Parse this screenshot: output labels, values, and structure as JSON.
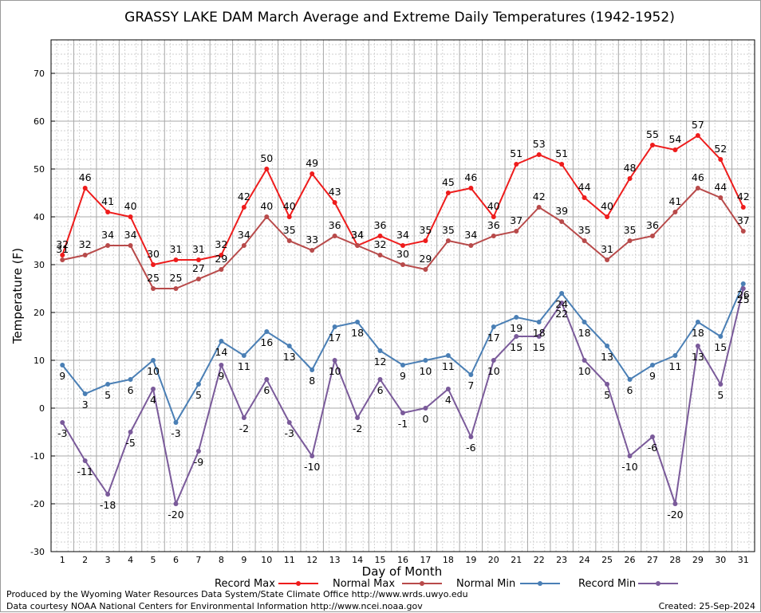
{
  "chart_data": {
    "type": "line",
    "title": "GRASSY LAKE DAM March Average and Extreme Daily Temperatures (1942-1952)",
    "xlabel": "Day of Month",
    "ylabel": "Temperature (F)",
    "x": [
      1,
      2,
      3,
      4,
      5,
      6,
      7,
      8,
      9,
      10,
      11,
      12,
      13,
      14,
      15,
      16,
      17,
      18,
      19,
      20,
      21,
      22,
      23,
      24,
      25,
      26,
      27,
      28,
      29,
      30,
      31
    ],
    "ylim": [
      -30,
      77
    ],
    "yticks": [
      -30,
      -20,
      -10,
      0,
      10,
      20,
      30,
      40,
      50,
      60,
      70
    ],
    "grid": true,
    "series": [
      {
        "name": "Record Max",
        "color": "#ee1c1c",
        "values": [
          32,
          46,
          41,
          40,
          30,
          31,
          31,
          32,
          42,
          50,
          40,
          49,
          43,
          34,
          36,
          34,
          35,
          45,
          46,
          40,
          51,
          53,
          51,
          44,
          40,
          48,
          55,
          54,
          57,
          52,
          42
        ]
      },
      {
        "name": "Normal Max",
        "color": "#b84a4a",
        "values": [
          31,
          32,
          34,
          34,
          25,
          25,
          27,
          29,
          34,
          40,
          35,
          33,
          36,
          34,
          32,
          30,
          29,
          35,
          34,
          36,
          37,
          42,
          39,
          35,
          31,
          35,
          36,
          41,
          46,
          44,
          37
        ]
      },
      {
        "name": "Normal Min",
        "color": "#4a7fb5",
        "values": [
          9,
          3,
          5,
          6,
          10,
          -3,
          5,
          14,
          11,
          16,
          13,
          8,
          17,
          18,
          12,
          9,
          10,
          11,
          7,
          17,
          19,
          18,
          24,
          18,
          13,
          6,
          9,
          11,
          18,
          15,
          26
        ]
      },
      {
        "name": "Record Min",
        "color": "#7a5a9a",
        "values": [
          -3,
          -11,
          -18,
          -5,
          4,
          -20,
          -9,
          9,
          -2,
          6,
          -3,
          -10,
          10,
          -2,
          6,
          -1,
          0,
          4,
          -6,
          10,
          15,
          15,
          22,
          10,
          5,
          -10,
          -6,
          -20,
          13,
          5,
          25
        ]
      }
    ],
    "legend_position": "bottom"
  },
  "legend": {
    "record_max": "Record Max",
    "normal_max": "Normal Max",
    "normal_min": "Normal Min",
    "record_min": "Record Min"
  },
  "footer": {
    "produced_by": "Produced by the Wyoming Water Resources Data System/State Climate Office http://www.wrds.uwyo.edu",
    "courtesy": "Data courtesy NOAA National Centers for Environmental Information http://www.ncei.noaa.gov",
    "created": "Created:  25-Sep-2024"
  }
}
